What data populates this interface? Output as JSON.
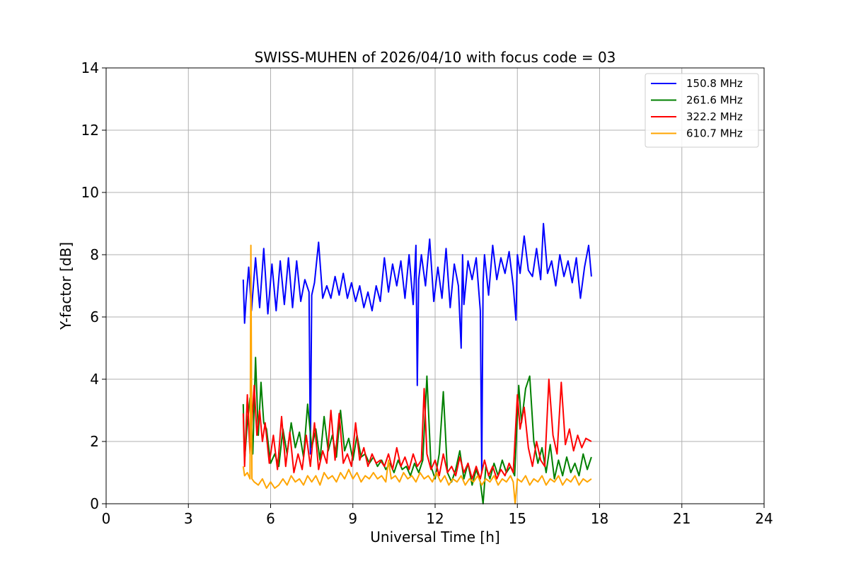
{
  "chart_data": {
    "type": "line",
    "title": "SWISS-MUHEN of 2026/04/10 with focus code = 03",
    "xlabel": "Universal Time [h]",
    "ylabel": "Y-factor [dB]",
    "xlim": [
      0,
      24
    ],
    "ylim": [
      0,
      14
    ],
    "xticks": [
      0,
      3,
      6,
      9,
      12,
      15,
      18,
      21,
      24
    ],
    "yticks": [
      0,
      2,
      4,
      6,
      8,
      10,
      12,
      14
    ],
    "grid": true,
    "legend_position": "top-right",
    "series": [
      {
        "name": "150.8 MHz",
        "color": "#0000ff",
        "x": [
          5.0,
          5.05,
          5.1,
          5.2,
          5.3,
          5.45,
          5.6,
          5.75,
          5.9,
          6.05,
          6.2,
          6.35,
          6.5,
          6.65,
          6.8,
          6.95,
          7.1,
          7.25,
          7.4,
          7.45,
          7.5,
          7.6,
          7.75,
          7.9,
          8.05,
          8.2,
          8.35,
          8.5,
          8.65,
          8.8,
          8.95,
          9.1,
          9.25,
          9.4,
          9.55,
          9.7,
          9.85,
          10.0,
          10.15,
          10.3,
          10.45,
          10.6,
          10.75,
          10.9,
          11.05,
          11.2,
          11.3,
          11.35,
          11.4,
          11.5,
          11.65,
          11.8,
          11.95,
          12.1,
          12.25,
          12.4,
          12.55,
          12.7,
          12.85,
          12.95,
          13.0,
          13.05,
          13.2,
          13.35,
          13.5,
          13.65,
          13.7,
          13.75,
          13.8,
          13.95,
          14.1,
          14.25,
          14.4,
          14.55,
          14.7,
          14.85,
          14.95,
          15.0,
          15.1,
          15.25,
          15.4,
          15.55,
          15.7,
          15.85,
          15.95,
          16.1,
          16.25,
          16.4,
          16.55,
          16.7,
          16.85,
          17.0,
          17.15,
          17.3,
          17.45,
          17.6,
          17.7
        ],
        "y": [
          7.2,
          5.8,
          6.5,
          7.6,
          6.2,
          7.9,
          6.3,
          8.2,
          6.1,
          7.7,
          6.2,
          7.8,
          6.4,
          7.9,
          6.3,
          7.8,
          6.5,
          7.2,
          6.8,
          1.6,
          6.7,
          7.1,
          8.4,
          6.6,
          7.0,
          6.6,
          7.3,
          6.7,
          7.4,
          6.6,
          7.1,
          6.5,
          7.0,
          6.3,
          6.8,
          6.2,
          7.0,
          6.5,
          7.9,
          6.8,
          7.7,
          7.0,
          7.8,
          6.6,
          8.0,
          6.4,
          8.3,
          3.8,
          7.2,
          8.0,
          7.0,
          8.5,
          6.5,
          7.6,
          6.6,
          8.2,
          6.3,
          7.7,
          7.0,
          5.0,
          8.0,
          6.4,
          7.8,
          7.2,
          7.9,
          6.2,
          1.0,
          7.1,
          8.0,
          6.7,
          8.3,
          7.2,
          7.9,
          7.4,
          8.1,
          7.0,
          5.9,
          8.0,
          7.4,
          8.6,
          7.5,
          7.3,
          8.2,
          7.2,
          9.0,
          7.4,
          7.8,
          7.0,
          8.0,
          7.3,
          7.8,
          7.1,
          7.9,
          6.6,
          7.6,
          8.3,
          7.3
        ]
      },
      {
        "name": "261.6 MHz",
        "color": "#008000",
        "x": [
          5.0,
          5.05,
          5.15,
          5.25,
          5.35,
          5.45,
          5.55,
          5.65,
          5.75,
          5.85,
          6.0,
          6.15,
          6.3,
          6.45,
          6.6,
          6.75,
          6.9,
          7.05,
          7.2,
          7.35,
          7.5,
          7.65,
          7.8,
          7.95,
          8.1,
          8.25,
          8.4,
          8.55,
          8.7,
          8.85,
          9.0,
          9.15,
          9.3,
          9.45,
          9.6,
          9.75,
          9.9,
          10.05,
          10.2,
          10.35,
          10.5,
          10.65,
          10.8,
          10.95,
          11.1,
          11.25,
          11.4,
          11.55,
          11.7,
          11.85,
          12.0,
          12.15,
          12.3,
          12.45,
          12.6,
          12.75,
          12.9,
          13.05,
          13.2,
          13.35,
          13.5,
          13.65,
          13.75,
          13.85,
          14.0,
          14.15,
          14.3,
          14.45,
          14.6,
          14.75,
          14.9,
          15.05,
          15.15,
          15.3,
          15.45,
          15.6,
          15.75,
          15.9,
          16.05,
          16.2,
          16.35,
          16.5,
          16.65,
          16.8,
          16.95,
          17.1,
          17.25,
          17.4,
          17.55,
          17.7
        ],
        "y": [
          3.2,
          1.4,
          2.6,
          3.4,
          1.6,
          4.7,
          2.2,
          3.9,
          2.6,
          2.4,
          1.3,
          1.6,
          1.2,
          2.4,
          1.6,
          2.6,
          1.8,
          2.3,
          1.5,
          3.2,
          1.8,
          2.4,
          1.4,
          2.8,
          1.7,
          2.2,
          1.5,
          3.0,
          1.7,
          2.1,
          1.4,
          2.2,
          1.5,
          1.6,
          1.3,
          1.5,
          1.2,
          1.4,
          1.1,
          1.3,
          1.0,
          1.4,
          1.1,
          1.2,
          0.9,
          1.3,
          1.0,
          1.4,
          4.1,
          1.2,
          0.8,
          1.6,
          3.6,
          1.0,
          0.7,
          1.1,
          1.7,
          0.8,
          1.3,
          0.6,
          1.1,
          0.7,
          0.0,
          1.2,
          0.8,
          1.3,
          0.9,
          1.4,
          1.0,
          1.2,
          0.9,
          3.8,
          2.6,
          3.7,
          4.1,
          2.0,
          1.3,
          1.8,
          1.0,
          1.9,
          0.8,
          1.4,
          0.9,
          1.5,
          1.0,
          1.3,
          0.9,
          1.6,
          1.1,
          1.5
        ]
      },
      {
        "name": "322.2 MHz",
        "color": "#ff0000",
        "x": [
          5.0,
          5.05,
          5.15,
          5.25,
          5.3,
          5.4,
          5.5,
          5.6,
          5.7,
          5.8,
          5.95,
          6.1,
          6.25,
          6.4,
          6.55,
          6.7,
          6.85,
          7.0,
          7.15,
          7.3,
          7.45,
          7.6,
          7.75,
          7.9,
          8.05,
          8.2,
          8.35,
          8.5,
          8.65,
          8.8,
          8.95,
          9.1,
          9.25,
          9.4,
          9.55,
          9.7,
          9.85,
          10.0,
          10.15,
          10.3,
          10.45,
          10.6,
          10.75,
          10.9,
          11.05,
          11.2,
          11.35,
          11.5,
          11.6,
          11.7,
          11.85,
          12.0,
          12.15,
          12.3,
          12.45,
          12.6,
          12.75,
          12.9,
          13.05,
          13.2,
          13.35,
          13.5,
          13.65,
          13.8,
          13.95,
          14.1,
          14.25,
          14.4,
          14.55,
          14.7,
          14.85,
          15.0,
          15.1,
          15.25,
          15.4,
          15.55,
          15.7,
          15.85,
          16.0,
          16.15,
          16.3,
          16.45,
          16.6,
          16.75,
          16.9,
          17.05,
          17.2,
          17.35,
          17.5,
          17.7
        ],
        "y": [
          2.9,
          1.2,
          3.5,
          1.6,
          2.4,
          3.8,
          2.2,
          3.0,
          2.0,
          2.6,
          1.3,
          2.2,
          1.1,
          2.8,
          1.2,
          2.3,
          1.0,
          1.6,
          1.1,
          2.2,
          1.2,
          2.6,
          1.1,
          1.7,
          1.3,
          3.0,
          1.4,
          2.9,
          1.3,
          1.6,
          1.2,
          2.6,
          1.4,
          1.8,
          1.2,
          1.6,
          1.3,
          1.4,
          1.2,
          1.6,
          1.1,
          1.8,
          1.2,
          1.5,
          1.1,
          1.6,
          1.2,
          1.4,
          3.7,
          1.6,
          1.1,
          1.4,
          0.9,
          1.6,
          1.0,
          1.2,
          0.9,
          1.5,
          1.0,
          1.3,
          0.8,
          1.2,
          0.8,
          1.4,
          0.9,
          1.2,
          0.8,
          1.1,
          0.9,
          1.3,
          1.0,
          3.5,
          2.4,
          3.1,
          1.8,
          1.2,
          2.0,
          1.4,
          1.2,
          4.0,
          2.2,
          1.6,
          3.9,
          1.9,
          2.4,
          1.7,
          2.2,
          1.8,
          2.1,
          2.0
        ]
      },
      {
        "name": "610.7 MHz",
        "color": "#ffa500",
        "x": [
          5.0,
          5.05,
          5.15,
          5.25,
          5.28,
          5.32,
          5.4,
          5.55,
          5.7,
          5.85,
          6.0,
          6.15,
          6.3,
          6.45,
          6.6,
          6.75,
          6.9,
          7.05,
          7.2,
          7.35,
          7.5,
          7.65,
          7.8,
          7.95,
          8.1,
          8.25,
          8.4,
          8.55,
          8.7,
          8.85,
          9.0,
          9.15,
          9.3,
          9.45,
          9.6,
          9.75,
          9.9,
          10.05,
          10.2,
          10.3,
          10.4,
          10.55,
          10.7,
          10.85,
          11.0,
          11.15,
          11.3,
          11.45,
          11.6,
          11.75,
          11.9,
          12.05,
          12.2,
          12.35,
          12.5,
          12.65,
          12.8,
          12.95,
          13.1,
          13.25,
          13.4,
          13.55,
          13.7,
          13.85,
          14.0,
          14.15,
          14.3,
          14.45,
          14.6,
          14.75,
          14.85,
          14.92,
          15.0,
          15.15,
          15.3,
          15.45,
          15.6,
          15.75,
          15.9,
          16.05,
          16.2,
          16.35,
          16.5,
          16.65,
          16.8,
          16.95,
          17.1,
          17.25,
          17.4,
          17.55,
          17.7
        ],
        "y": [
          1.2,
          0.9,
          1.0,
          0.8,
          8.3,
          0.8,
          0.7,
          0.6,
          0.8,
          0.5,
          0.7,
          0.5,
          0.6,
          0.8,
          0.6,
          0.9,
          0.7,
          0.8,
          0.6,
          0.9,
          0.7,
          0.9,
          0.6,
          1.0,
          0.8,
          0.9,
          0.7,
          1.0,
          0.8,
          1.1,
          0.8,
          1.0,
          0.7,
          0.9,
          0.8,
          1.0,
          0.8,
          0.9,
          0.7,
          1.4,
          0.8,
          0.9,
          0.7,
          1.0,
          0.8,
          0.9,
          0.7,
          1.0,
          0.8,
          0.9,
          0.7,
          1.0,
          0.7,
          0.9,
          0.6,
          0.8,
          0.7,
          0.9,
          0.6,
          0.8,
          0.7,
          0.9,
          0.6,
          0.8,
          0.7,
          0.9,
          0.6,
          0.8,
          0.7,
          0.9,
          0.7,
          0.0,
          0.8,
          0.7,
          0.9,
          0.6,
          0.8,
          0.7,
          0.9,
          0.6,
          0.8,
          0.7,
          0.9,
          0.6,
          0.8,
          0.7,
          0.9,
          0.6,
          0.8,
          0.7,
          0.8
        ]
      }
    ]
  }
}
